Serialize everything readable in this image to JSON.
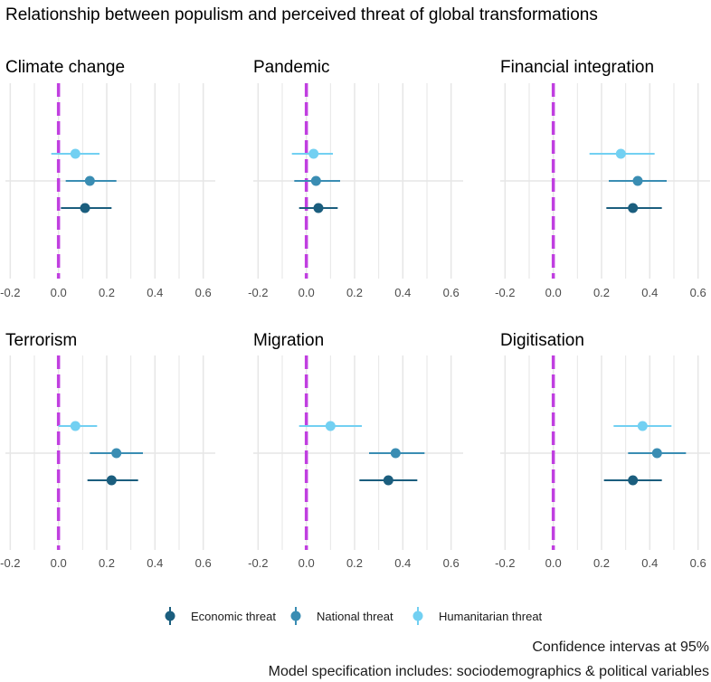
{
  "title": "Relationship between populism and perceived threat of global transformations",
  "caption_lines": [
    "Confidence intervas at 95%",
    "Model specification includes: sociodemographics & political variables"
  ],
  "colors": {
    "economic": "#1b5e7e",
    "national": "#3a8db3",
    "humanitarian": "#72d0f2",
    "reference_line": "#c03fe0",
    "grid": "#e6e6e6"
  },
  "chart_data": {
    "type": "scatter",
    "xlim": [
      -0.22,
      0.65
    ],
    "x_ticks": [
      -0.2,
      0.0,
      0.2,
      0.4,
      0.6
    ],
    "x_tick_labels": [
      "-0.2",
      "0.0",
      "0.2",
      "0.4",
      "0.6"
    ],
    "reference_x": 0,
    "grid": true,
    "legend_position": "bottom",
    "series_names": [
      "Economic threat",
      "National threat",
      "Humanitarian threat"
    ],
    "panels": [
      {
        "title": "Climate change",
        "series": [
          {
            "name": "Economic threat",
            "est": 0.11,
            "lo": 0.01,
            "hi": 0.22
          },
          {
            "name": "National threat",
            "est": 0.13,
            "lo": 0.03,
            "hi": 0.24
          },
          {
            "name": "Humanitarian threat",
            "est": 0.07,
            "lo": -0.03,
            "hi": 0.17
          }
        ]
      },
      {
        "title": "Pandemic",
        "series": [
          {
            "name": "Economic threat",
            "est": 0.05,
            "lo": -0.03,
            "hi": 0.13
          },
          {
            "name": "National threat",
            "est": 0.04,
            "lo": -0.05,
            "hi": 0.14
          },
          {
            "name": "Humanitarian threat",
            "est": 0.03,
            "lo": -0.06,
            "hi": 0.11
          }
        ]
      },
      {
        "title": "Financial integration",
        "series": [
          {
            "name": "Economic threat",
            "est": 0.33,
            "lo": 0.22,
            "hi": 0.45
          },
          {
            "name": "National threat",
            "est": 0.35,
            "lo": 0.23,
            "hi": 0.47
          },
          {
            "name": "Humanitarian threat",
            "est": 0.28,
            "lo": 0.15,
            "hi": 0.42
          }
        ]
      },
      {
        "title": "Terrorism",
        "series": [
          {
            "name": "Economic threat",
            "est": 0.22,
            "lo": 0.12,
            "hi": 0.33
          },
          {
            "name": "National threat",
            "est": 0.24,
            "lo": 0.13,
            "hi": 0.35
          },
          {
            "name": "Humanitarian threat",
            "est": 0.07,
            "lo": 0.0,
            "hi": 0.16
          }
        ]
      },
      {
        "title": "Migration",
        "series": [
          {
            "name": "Economic threat",
            "est": 0.34,
            "lo": 0.22,
            "hi": 0.46
          },
          {
            "name": "National threat",
            "est": 0.37,
            "lo": 0.26,
            "hi": 0.49
          },
          {
            "name": "Humanitarian threat",
            "est": 0.1,
            "lo": -0.03,
            "hi": 0.23
          }
        ]
      },
      {
        "title": "Digitisation",
        "series": [
          {
            "name": "Economic threat",
            "est": 0.33,
            "lo": 0.21,
            "hi": 0.45
          },
          {
            "name": "National threat",
            "est": 0.43,
            "lo": 0.31,
            "hi": 0.55
          },
          {
            "name": "Humanitarian threat",
            "est": 0.37,
            "lo": 0.25,
            "hi": 0.49
          }
        ]
      }
    ]
  }
}
